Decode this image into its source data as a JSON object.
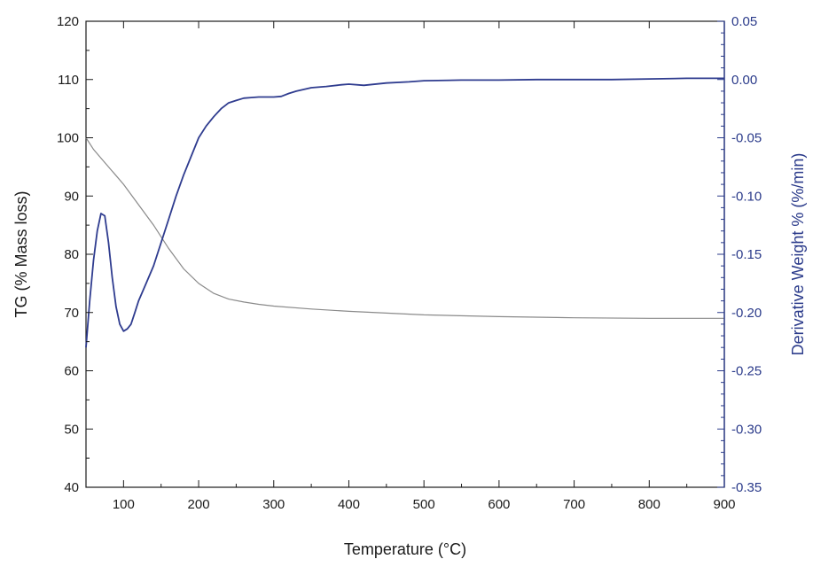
{
  "chart_data": {
    "type": "line",
    "xlabel": "Temperature (°C)",
    "ylabel_left": "TG (% Mass loss)",
    "ylabel_right": "Derivative Weight % (%/min)",
    "xlim": [
      50,
      900
    ],
    "ylim_left": [
      40,
      120
    ],
    "ylim_right": [
      -0.35,
      0.05
    ],
    "x_ticks": [
      100,
      200,
      300,
      400,
      500,
      600,
      700,
      800,
      900
    ],
    "y_left_ticks": [
      40,
      50,
      60,
      70,
      80,
      90,
      100,
      110,
      120
    ],
    "y_right_ticks": [
      -0.35,
      -0.3,
      -0.25,
      -0.2,
      -0.15,
      -0.1,
      -0.05,
      0.0,
      0.05
    ],
    "y_right_tick_labels": [
      "-0.35",
      "-0.30",
      "-0.25",
      "-0.20",
      "-0.15",
      "-0.10",
      "-0.05",
      "0.00",
      "0.05"
    ],
    "grid": false,
    "legend": "none",
    "colors": {
      "tg": "#8a8a8a",
      "dtg": "#2f3c8f",
      "right_axis": "#2a3a8a",
      "axis": "#1a1a1a"
    },
    "series": [
      {
        "axis": "left",
        "x": [
          50,
          60,
          70,
          80,
          90,
          100,
          120,
          140,
          160,
          180,
          200,
          220,
          240,
          260,
          280,
          300,
          350,
          400,
          450,
          500,
          600,
          700,
          800,
          900
        ],
        "y": [
          100,
          98,
          96.5,
          95,
          93.5,
          92,
          88.5,
          85,
          81,
          77.5,
          75,
          73.3,
          72.3,
          71.8,
          71.4,
          71.1,
          70.6,
          70.2,
          69.9,
          69.6,
          69.3,
          69.1,
          69.0,
          69.0
        ]
      },
      {
        "axis": "right",
        "x": [
          50,
          55,
          60,
          65,
          70,
          75,
          80,
          85,
          90,
          95,
          100,
          105,
          110,
          115,
          120,
          130,
          140,
          150,
          160,
          170,
          180,
          190,
          200,
          210,
          220,
          230,
          240,
          250,
          260,
          270,
          280,
          290,
          300,
          310,
          320,
          330,
          350,
          370,
          390,
          400,
          420,
          450,
          480,
          500,
          550,
          600,
          650,
          700,
          750,
          800,
          850,
          900
        ],
        "y": [
          -0.23,
          -0.19,
          -0.155,
          -0.13,
          -0.115,
          -0.117,
          -0.14,
          -0.17,
          -0.195,
          -0.21,
          -0.216,
          -0.214,
          -0.21,
          -0.2,
          -0.19,
          -0.175,
          -0.16,
          -0.14,
          -0.12,
          -0.1,
          -0.082,
          -0.066,
          -0.05,
          -0.04,
          -0.032,
          -0.025,
          -0.02,
          -0.018,
          -0.016,
          -0.0155,
          -0.015,
          -0.015,
          -0.015,
          -0.0145,
          -0.012,
          -0.01,
          -0.007,
          -0.006,
          -0.0045,
          -0.004,
          -0.005,
          -0.003,
          -0.002,
          -0.001,
          -0.0005,
          -0.0005,
          0.0,
          0.0,
          0.0,
          0.0005,
          0.001,
          0.001
        ]
      }
    ]
  }
}
